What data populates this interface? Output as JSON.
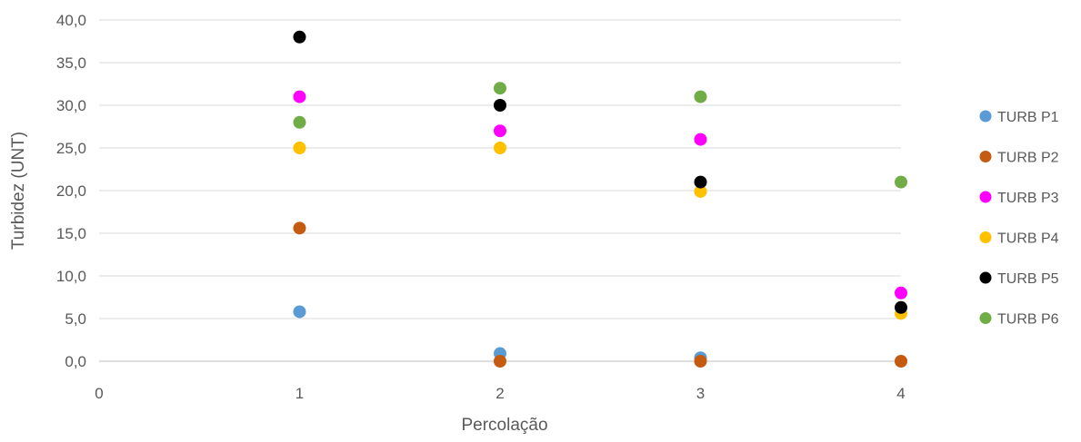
{
  "chart_data": {
    "type": "scatter",
    "title": "",
    "xlabel": "Percolação",
    "ylabel": "Turbidez (UNT)",
    "xlim": [
      0,
      4
    ],
    "ylim": [
      0,
      40
    ],
    "x_ticks": [
      "0",
      "1",
      "2",
      "3",
      "4"
    ],
    "y_ticks": [
      "0,0",
      "5,0",
      "10,0",
      "15,0",
      "20,0",
      "25,0",
      "30,0",
      "35,0",
      "40,0"
    ],
    "grid": "horizontal",
    "legend_position": "right",
    "series": [
      {
        "name": "TURB P1",
        "color": "#5B9BD5",
        "x": [
          1,
          2,
          3
        ],
        "y": [
          5.8,
          0.9,
          0.4
        ]
      },
      {
        "name": "TURB P2",
        "color": "#C55A11",
        "x": [
          1,
          2,
          3,
          4
        ],
        "y": [
          15.6,
          0.0,
          0.0,
          0.0
        ]
      },
      {
        "name": "TURB P3",
        "color": "#FF00FF",
        "x": [
          1,
          2,
          3,
          4
        ],
        "y": [
          31.0,
          27.0,
          26.0,
          8.0
        ]
      },
      {
        "name": "TURB P4",
        "color": "#FFC000",
        "x": [
          1,
          2,
          3,
          4
        ],
        "y": [
          25.0,
          25.0,
          19.9,
          5.6
        ]
      },
      {
        "name": "TURB P5",
        "color": "#000000",
        "x": [
          1,
          2,
          3,
          4
        ],
        "y": [
          38.0,
          30.0,
          21.0,
          6.3
        ]
      },
      {
        "name": "TURB P6",
        "color": "#70AD47",
        "x": [
          1,
          2,
          3,
          4
        ],
        "y": [
          28.0,
          32.0,
          31.0,
          21.0
        ]
      }
    ]
  }
}
